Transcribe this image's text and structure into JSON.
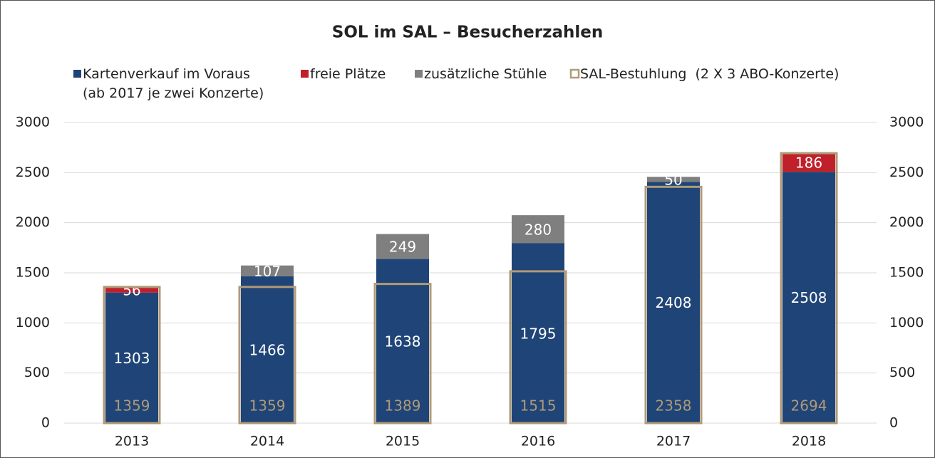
{
  "chart_data": {
    "type": "stacked_bar",
    "title": "SOL im SAL – Besucherzahlen",
    "categories": [
      "2013",
      "2014",
      "2015",
      "2016",
      "2017",
      "2018"
    ],
    "series": [
      {
        "name": "Kartenverkauf im Voraus\n(ab 2017 je zwei Konzerte)",
        "color": "#1f4477",
        "values": [
          1303,
          1466,
          1638,
          1795,
          2408,
          2508
        ]
      },
      {
        "name": "freie Plätze",
        "color": "#c0202a",
        "values": [
          56,
          null,
          null,
          null,
          null,
          186
        ]
      },
      {
        "name": "zusätzliche Stühle",
        "color": "#7f7f7f",
        "values": [
          null,
          107,
          249,
          280,
          50,
          null
        ]
      },
      {
        "name": "SAL-Bestuhlung  (2 X 3 ABO-Konzerte)",
        "color": "#b09a78",
        "style": "outline",
        "values": [
          1359,
          1359,
          1389,
          1515,
          2358,
          2694
        ]
      }
    ],
    "ylim": [
      0,
      3000
    ],
    "yticks": [
      0,
      500,
      1000,
      1500,
      2000,
      2500,
      3000
    ],
    "y2lim": [
      0,
      3000
    ],
    "y2ticks": [
      0,
      500,
      1000,
      1500,
      2000,
      2500,
      3000
    ],
    "grid": true,
    "legend": "top"
  }
}
